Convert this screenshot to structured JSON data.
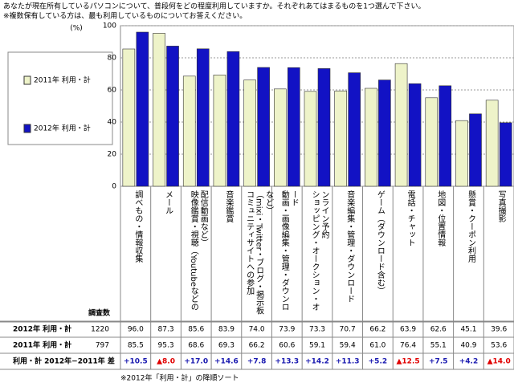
{
  "header": {
    "question": "あなたが現在所有しているパソコンについて、普段何をどの程度利用していますか。それぞれあてはまるものを1つ選んで下さい。",
    "note": "※複数保有している方は、最も利用しているものについてお答えください。"
  },
  "chart_data": {
    "type": "bar",
    "y_unit": "(%)",
    "categories": [
      "調べもの・情報収集",
      "メール",
      "映像鑑賞・視聴（Youtubeなどの配信動画など）",
      "音楽鑑賞",
      "コミュニティサイトへの参加（mixi・Twitter・ブログ・掲示板など）",
      "動画・画像編集・管理・ダウンロード",
      "ショッピング・オークション・オンライン予約",
      "音楽編集・管理・ダウンロード",
      "ゲーム（ダウンロード含む）",
      "電話・チャット",
      "地図・位置情報",
      "懸賞・クーポン利用",
      "写真撮影"
    ],
    "series": [
      {
        "name": "2011年 利用・計",
        "color": "#eef3c9",
        "values": [
          85.5,
          95.3,
          68.6,
          69.3,
          66.2,
          60.6,
          59.1,
          59.4,
          61.0,
          76.4,
          55.1,
          40.9,
          53.6
        ],
        "value_labels": [
          "85.5",
          "95.3",
          "68.6",
          "69.3",
          "66.2",
          "60.6",
          "59.1",
          "59.4",
          "61.0",
          "76.4",
          "55.1",
          "40.9",
          "53.6"
        ]
      },
      {
        "name": "2012年 利用・計",
        "color": "#1212c4",
        "values": [
          96.0,
          87.3,
          85.6,
          83.9,
          74.0,
          73.9,
          73.3,
          70.7,
          66.2,
          63.9,
          62.6,
          45.1,
          39.6
        ],
        "value_labels": [
          "96.0",
          "87.3",
          "85.6",
          "83.9",
          "74.0",
          "73.9",
          "73.3",
          "70.7",
          "66.2",
          "63.9",
          "62.6",
          "45.1",
          "39.6"
        ]
      }
    ],
    "ylim": [
      0,
      100
    ],
    "yticks": [
      0,
      20,
      40,
      60,
      80,
      100
    ],
    "grid": true
  },
  "table": {
    "sample_header": "調査数",
    "sample_sizes": [
      797,
      1220
    ],
    "diff_label": "利用・計 2012年−2011年 差",
    "diffs": [
      "+10.5",
      "▲8.0",
      "+17.0",
      "+14.6",
      "+7.8",
      "+13.3",
      "+14.2",
      "+11.3",
      "+5.2",
      "▲12.5",
      "+7.5",
      "+4.2",
      "▲14.0"
    ],
    "up_color": "#1a1ab0",
    "down_color": "#e00000",
    "note": "※2012年「利用・計」の降順ソート"
  }
}
